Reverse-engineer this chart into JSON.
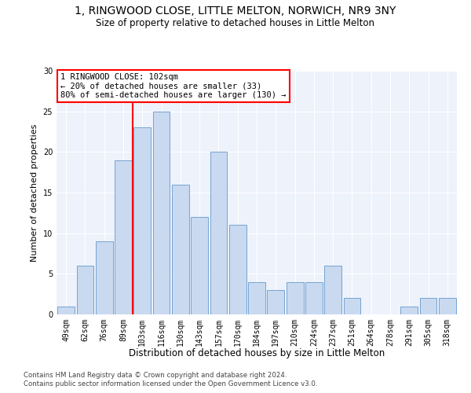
{
  "title1": "1, RINGWOOD CLOSE, LITTLE MELTON, NORWICH, NR9 3NY",
  "title2": "Size of property relative to detached houses in Little Melton",
  "xlabel": "Distribution of detached houses by size in Little Melton",
  "ylabel": "Number of detached properties",
  "bar_labels": [
    "49sqm",
    "62sqm",
    "76sqm",
    "89sqm",
    "103sqm",
    "116sqm",
    "130sqm",
    "143sqm",
    "157sqm",
    "170sqm",
    "184sqm",
    "197sqm",
    "210sqm",
    "224sqm",
    "237sqm",
    "251sqm",
    "264sqm",
    "278sqm",
    "291sqm",
    "305sqm",
    "318sqm"
  ],
  "bar_values": [
    1,
    6,
    9,
    19,
    23,
    25,
    16,
    12,
    20,
    11,
    4,
    3,
    4,
    4,
    6,
    2,
    0,
    0,
    1,
    2,
    2
  ],
  "bar_color": "#c9d9f0",
  "bar_edge_color": "#6699cc",
  "vline_color": "red",
  "annotation_text": "1 RINGWOOD CLOSE: 102sqm\n← 20% of detached houses are smaller (33)\n80% of semi-detached houses are larger (130) →",
  "annotation_box_color": "white",
  "annotation_box_edge": "red",
  "ylim": [
    0,
    30
  ],
  "yticks": [
    0,
    5,
    10,
    15,
    20,
    25,
    30
  ],
  "footer1": "Contains HM Land Registry data © Crown copyright and database right 2024.",
  "footer2": "Contains public sector information licensed under the Open Government Licence v3.0.",
  "bg_color": "#edf2fb"
}
